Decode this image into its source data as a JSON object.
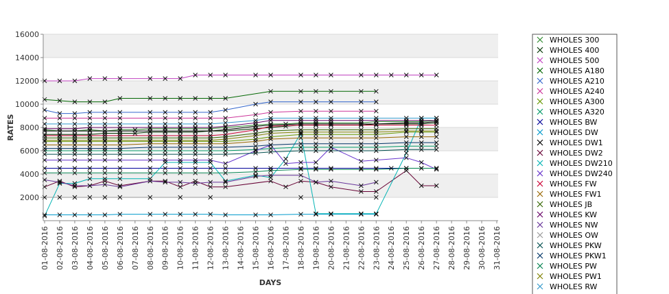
{
  "chart_data": {
    "type": "line",
    "xlabel": "DAYS",
    "ylabel": "RATES",
    "ylim": [
      0,
      16000
    ],
    "yticks": [
      "2000",
      "4000",
      "6000",
      "8000",
      "10000",
      "12000",
      "14000",
      "16000"
    ],
    "categories": [
      "01-08-2016",
      "02-08-2016",
      "03-08-2016",
      "04-08-2016",
      "05-08-2016",
      "06-08-2016",
      "07-08-2016",
      "08-08-2016",
      "09-08-2016",
      "10-08-2016",
      "11-08-2016",
      "12-08-2016",
      "13-08-2016",
      "14-08-2016",
      "15-08-2016",
      "16-08-2016",
      "17-08-2016",
      "18-08-2016",
      "19-08-2016",
      "20-08-2016",
      "21-08-2016",
      "22-08-2016",
      "23-08-2016",
      "24-08-2016",
      "25-08-2016",
      "26-08-2016",
      "27-08-2016",
      "28-08-2016",
      "29-08-2016",
      "30-08-2016",
      "31-08-2016"
    ],
    "grid": true,
    "legend_position": "right",
    "series": [
      {
        "name": "WHOLES 300",
        "color": "#2e8b2e",
        "values": [
          7800,
          7700,
          7700,
          7800,
          7700,
          7800,
          7800,
          7900,
          7900,
          7900,
          7900,
          7900,
          8000,
          null,
          8200,
          8300,
          8300,
          8400,
          8400,
          8400,
          null,
          8400,
          8500,
          null,
          8500,
          8500,
          8600,
          null,
          null,
          null,
          null
        ]
      },
      {
        "name": "WHOLES 400",
        "color": "#003300",
        "values": [
          7400,
          7400,
          7400,
          7400,
          7500,
          7500,
          7500,
          7600,
          7600,
          7600,
          7600,
          7700,
          7700,
          null,
          7900,
          8000,
          8100,
          8200,
          8200,
          8200,
          null,
          8200,
          8300,
          null,
          8300,
          8300,
          8400,
          null,
          null,
          null,
          null
        ]
      },
      {
        "name": "WHOLES 500",
        "color": "#c040c0",
        "values": [
          12000,
          12000,
          12000,
          12200,
          12200,
          12200,
          null,
          12200,
          12200,
          12200,
          12500,
          12500,
          12500,
          null,
          12500,
          12500,
          null,
          12500,
          12500,
          12500,
          null,
          12500,
          12500,
          12500,
          12500,
          12500,
          12500,
          null,
          null,
          null,
          null
        ]
      },
      {
        "name": "WHOLES A180",
        "color": "#006600",
        "values": [
          10400,
          10300,
          10200,
          10200,
          10200,
          10500,
          null,
          10500,
          10500,
          10500,
          10500,
          10500,
          10500,
          null,
          null,
          11100,
          null,
          11100,
          11100,
          11100,
          null,
          11100,
          11100,
          null,
          null,
          null,
          null,
          null,
          null,
          null,
          null
        ]
      },
      {
        "name": "WHOLES A210",
        "color": "#3366cc",
        "values": [
          9500,
          9200,
          9200,
          9300,
          9300,
          9300,
          null,
          9300,
          9300,
          9300,
          9300,
          9300,
          9500,
          null,
          10000,
          10200,
          null,
          10200,
          10200,
          10200,
          null,
          10200,
          10200,
          null,
          null,
          null,
          null,
          null,
          null,
          null,
          null
        ]
      },
      {
        "name": "WHOLES A240",
        "color": "#cc3399",
        "values": [
          8800,
          8800,
          8800,
          8800,
          8800,
          8800,
          null,
          8800,
          8800,
          8800,
          8800,
          8800,
          8800,
          null,
          9100,
          9300,
          null,
          9400,
          9400,
          9400,
          null,
          9400,
          9400,
          null,
          null,
          null,
          null,
          null,
          null,
          null,
          null
        ]
      },
      {
        "name": "WHOLES A300",
        "color": "#669900",
        "values": [
          6800,
          6800,
          6800,
          6800,
          6800,
          6800,
          null,
          6800,
          6800,
          6800,
          6800,
          6800,
          6800,
          null,
          7000,
          7200,
          null,
          7400,
          7400,
          7400,
          null,
          7400,
          7400,
          null,
          7600,
          7600,
          7600,
          null,
          null,
          null,
          null
        ]
      },
      {
        "name": "WHOLES A320",
        "color": "#009966",
        "values": [
          6000,
          6000,
          6000,
          6000,
          6000,
          6000,
          null,
          6000,
          6000,
          6000,
          6000,
          6000,
          6000,
          null,
          6100,
          6200,
          null,
          6300,
          6300,
          6300,
          null,
          6300,
          6300,
          null,
          6400,
          6400,
          6400,
          null,
          null,
          null,
          null
        ]
      },
      {
        "name": "WHOLES BW",
        "color": "#000099",
        "values": [
          4500,
          4500,
          4500,
          4500,
          4500,
          4500,
          null,
          4500,
          4500,
          4500,
          4500,
          4500,
          4500,
          null,
          4500,
          4500,
          null,
          4500,
          4500,
          4500,
          null,
          4500,
          4500,
          4500,
          4500,
          4500,
          4500,
          null,
          null,
          null,
          null
        ]
      },
      {
        "name": "WHOLES DW",
        "color": "#0099cc",
        "values": [
          500,
          500,
          500,
          500,
          500,
          550,
          null,
          550,
          550,
          550,
          550,
          550,
          500,
          null,
          500,
          500,
          null,
          550,
          550,
          550,
          null,
          550,
          550,
          null,
          null,
          null,
          null,
          null,
          null,
          null,
          null
        ]
      },
      {
        "name": "WHOLES DW1",
        "color": "#000000",
        "values": [
          7700,
          7700,
          7700,
          7700,
          7700,
          7700,
          null,
          7700,
          7700,
          7700,
          7700,
          7700,
          7800,
          null,
          8100,
          8200,
          null,
          8300,
          8300,
          8300,
          null,
          8300,
          8300,
          null,
          8400,
          8400,
          8500,
          null,
          null,
          null,
          null
        ]
      },
      {
        "name": "WHOLES DW2",
        "color": "#660033",
        "values": [
          2900,
          3400,
          2900,
          3000,
          3400,
          3000,
          null,
          3400,
          3400,
          2900,
          3400,
          2900,
          2900,
          null,
          null,
          3400,
          2900,
          3400,
          3300,
          2900,
          null,
          2500,
          2500,
          null,
          4300,
          3000,
          3000,
          null,
          null,
          null,
          null
        ]
      },
      {
        "name": "WHOLES DW210",
        "color": "#00b3b3",
        "values": [
          400,
          3200,
          3200,
          3600,
          3600,
          3600,
          null,
          3600,
          5000,
          5000,
          5000,
          5000,
          3400,
          null,
          3900,
          3700,
          5300,
          7500,
          600,
          600,
          null,
          600,
          600,
          null,
          5800,
          8800,
          8800,
          null,
          null,
          null,
          null
        ]
      },
      {
        "name": "WHOLES DW240",
        "color": "#6633cc",
        "values": [
          5200,
          5200,
          5200,
          5200,
          5200,
          5200,
          null,
          5200,
          5200,
          5200,
          5200,
          5200,
          4900,
          null,
          6000,
          6500,
          4900,
          5000,
          5000,
          6300,
          null,
          5100,
          5200,
          null,
          5400,
          5000,
          4400,
          null,
          null,
          null,
          null
        ]
      },
      {
        "name": "WHOLES FW",
        "color": "#cc0033",
        "values": [
          7300,
          7300,
          7300,
          7300,
          7300,
          7300,
          null,
          7300,
          7300,
          7300,
          7300,
          7300,
          7400,
          null,
          7800,
          8100,
          null,
          8200,
          8200,
          8200,
          null,
          8200,
          8200,
          null,
          8200,
          8200,
          8200,
          null,
          null,
          null,
          null
        ]
      },
      {
        "name": "WHOLES FW1",
        "color": "#996600",
        "values": [
          6500,
          6500,
          6500,
          6500,
          6500,
          6500,
          null,
          6600,
          6600,
          6600,
          6600,
          6600,
          6600,
          null,
          6800,
          7000,
          null,
          7100,
          7100,
          7100,
          null,
          7100,
          7100,
          null,
          7200,
          7200,
          7200,
          null,
          null,
          null,
          null
        ]
      },
      {
        "name": "WHOLES JB",
        "color": "#336600",
        "values": [
          7100,
          7100,
          7100,
          7100,
          7100,
          7100,
          null,
          7100,
          7100,
          7100,
          7100,
          7100,
          7200,
          null,
          7500,
          7700,
          null,
          7800,
          7800,
          7800,
          null,
          7800,
          7800,
          null,
          7900,
          7900,
          7900,
          null,
          null,
          null,
          null
        ]
      },
      {
        "name": "WHOLES KW",
        "color": "#660066",
        "values": [
          7900,
          7900,
          7900,
          8000,
          8000,
          8000,
          null,
          8000,
          8000,
          8000,
          8000,
          8000,
          8100,
          null,
          8400,
          8600,
          null,
          8600,
          8600,
          8600,
          null,
          8600,
          8600,
          null,
          8600,
          8600,
          8600,
          null,
          null,
          null,
          null
        ]
      },
      {
        "name": "WHOLES NW",
        "color": "#663399",
        "values": [
          3500,
          3300,
          3000,
          3000,
          3100,
          2900,
          null,
          3400,
          3300,
          3300,
          3200,
          3300,
          3300,
          null,
          3800,
          3900,
          null,
          3900,
          3300,
          3400,
          null,
          3000,
          3300,
          null,
          null,
          null,
          null,
          null,
          null,
          null,
          null
        ]
      },
      {
        "name": "WHOLES OW",
        "color": "#999999",
        "values": [
          2000,
          2000,
          2000,
          2000,
          2000,
          2000,
          null,
          2000,
          null,
          2000,
          null,
          2000,
          null,
          null,
          null,
          null,
          null,
          2000,
          null,
          null,
          null,
          null,
          2000,
          null,
          null,
          null,
          null,
          null,
          null,
          null,
          null
        ]
      },
      {
        "name": "WHOLES PKW",
        "color": "#004d4d",
        "values": [
          5700,
          5700,
          5700,
          5700,
          5700,
          5700,
          null,
          5700,
          5700,
          5700,
          5700,
          5700,
          5700,
          null,
          5800,
          5900,
          null,
          6000,
          6000,
          6000,
          null,
          6000,
          6000,
          null,
          6100,
          6100,
          6100,
          null,
          null,
          null,
          null
        ]
      },
      {
        "name": "WHOLES PKW1",
        "color": "#003366",
        "values": [
          6200,
          6200,
          6200,
          6200,
          6200,
          6200,
          null,
          6300,
          6300,
          6300,
          6300,
          6300,
          6300,
          null,
          6400,
          6500,
          null,
          6600,
          6600,
          6600,
          null,
          6600,
          6600,
          null,
          6700,
          6700,
          6700,
          null,
          null,
          null,
          null
        ]
      },
      {
        "name": "WHOLES PW",
        "color": "#00804d",
        "values": [
          4100,
          4100,
          4100,
          4100,
          4100,
          4100,
          null,
          4100,
          4100,
          4100,
          4100,
          4100,
          4100,
          null,
          4200,
          4300,
          null,
          4400,
          4400,
          4400,
          null,
          4400,
          4400,
          null,
          4500,
          4500,
          4500,
          null,
          null,
          null,
          null
        ]
      },
      {
        "name": "WHOLES PW1",
        "color": "#808000",
        "values": [
          6900,
          6900,
          6900,
          6900,
          6900,
          6900,
          null,
          6900,
          6900,
          6900,
          6900,
          6900,
          7000,
          null,
          7300,
          7500,
          null,
          7600,
          7600,
          7600,
          null,
          7600,
          7600,
          null,
          7700,
          7700,
          7700,
          null,
          null,
          null,
          null
        ]
      },
      {
        "name": "WHOLES RW",
        "color": "#3399cc",
        "values": [
          8300,
          8300,
          8300,
          8300,
          8300,
          8300,
          null,
          8300,
          8300,
          8300,
          8300,
          8300,
          8400,
          null,
          8600,
          8800,
          null,
          8800,
          8800,
          8800,
          null,
          8800,
          8800,
          null,
          8800,
          8800,
          8800,
          null,
          null,
          null,
          null
        ]
      }
    ]
  }
}
